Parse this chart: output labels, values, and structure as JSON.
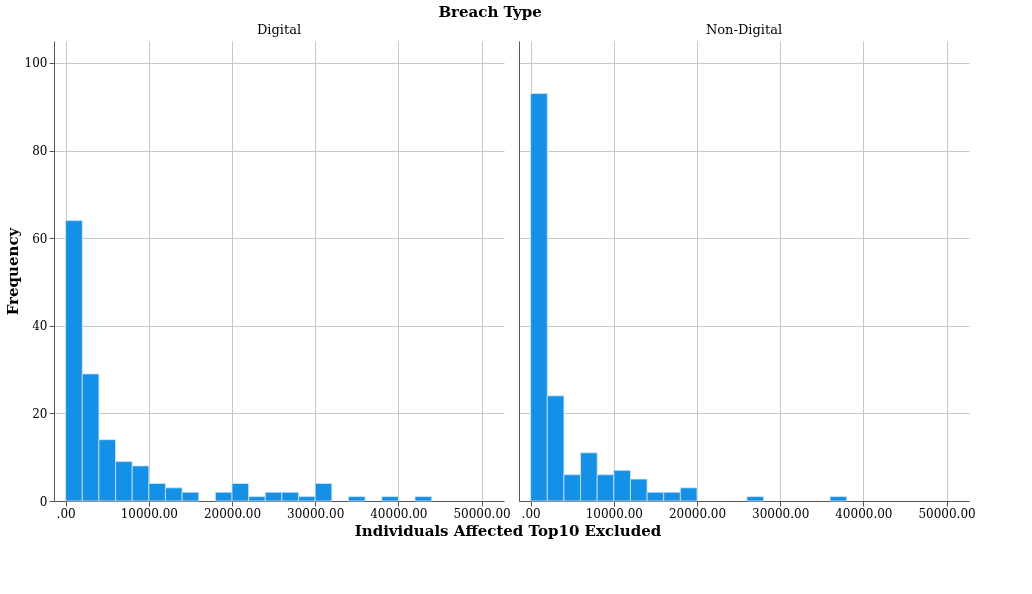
{
  "chart_data": [
    {
      "type": "histogram",
      "title": "Digital",
      "annotations": [
        "Breach Type"
      ],
      "xlabel": "Individuals Affected Top10 Excluded",
      "ylabel": "Frequency",
      "color": "#1490e6",
      "bins": [
        0,
        2000,
        4000,
        6000,
        8000,
        10000,
        12000,
        14000,
        16000,
        18000,
        20000,
        22000,
        24000,
        26000,
        28000,
        30000,
        32000,
        34000,
        36000,
        38000,
        40000,
        42000,
        44000
      ],
      "values": [
        64,
        29,
        14,
        9,
        8,
        4,
        3,
        2,
        0,
        2,
        4,
        1,
        2,
        2,
        1,
        4,
        0,
        1,
        0,
        1,
        0,
        1
      ],
      "xlim": [
        -1400,
        52700
      ],
      "ylim": [
        0,
        105
      ],
      "xticks": [
        {
          "value": 0,
          "label": ".00"
        },
        {
          "value": 10000,
          "label": "10000.00"
        },
        {
          "value": 20000,
          "label": "20000.00"
        },
        {
          "value": 30000,
          "label": "30000.00"
        },
        {
          "value": 40000,
          "label": "40000.00"
        },
        {
          "value": 50000,
          "label": "50000.00"
        }
      ],
      "yticks": [
        0,
        20,
        40,
        60,
        80,
        100
      ],
      "grid": true
    },
    {
      "type": "histogram",
      "title": "Non-Digital",
      "color": "#1490e6",
      "bins": [
        0,
        2000,
        4000,
        6000,
        8000,
        10000,
        12000,
        14000,
        16000,
        18000,
        20000,
        22000,
        24000,
        26000,
        28000,
        30000,
        32000,
        34000,
        36000,
        38000
      ],
      "values": [
        93,
        24,
        6,
        11,
        6,
        7,
        5,
        2,
        2,
        3,
        0,
        0,
        0,
        1,
        0,
        0,
        0,
        0,
        1
      ],
      "xlim": [
        -1400,
        52700
      ],
      "ylim": [
        0,
        105
      ],
      "xticks": [
        {
          "value": 0,
          "label": ".00"
        },
        {
          "value": 10000,
          "label": "10000.00"
        },
        {
          "value": 20000,
          "label": "20000.00"
        },
        {
          "value": 30000,
          "label": "30000.00"
        },
        {
          "value": 40000,
          "label": "40000.00"
        },
        {
          "value": 50000,
          "label": "50000.00"
        }
      ],
      "yticks": [
        0,
        20,
        40,
        60,
        80,
        100
      ],
      "grid": true,
      "tick_labels": "x"
    }
  ]
}
